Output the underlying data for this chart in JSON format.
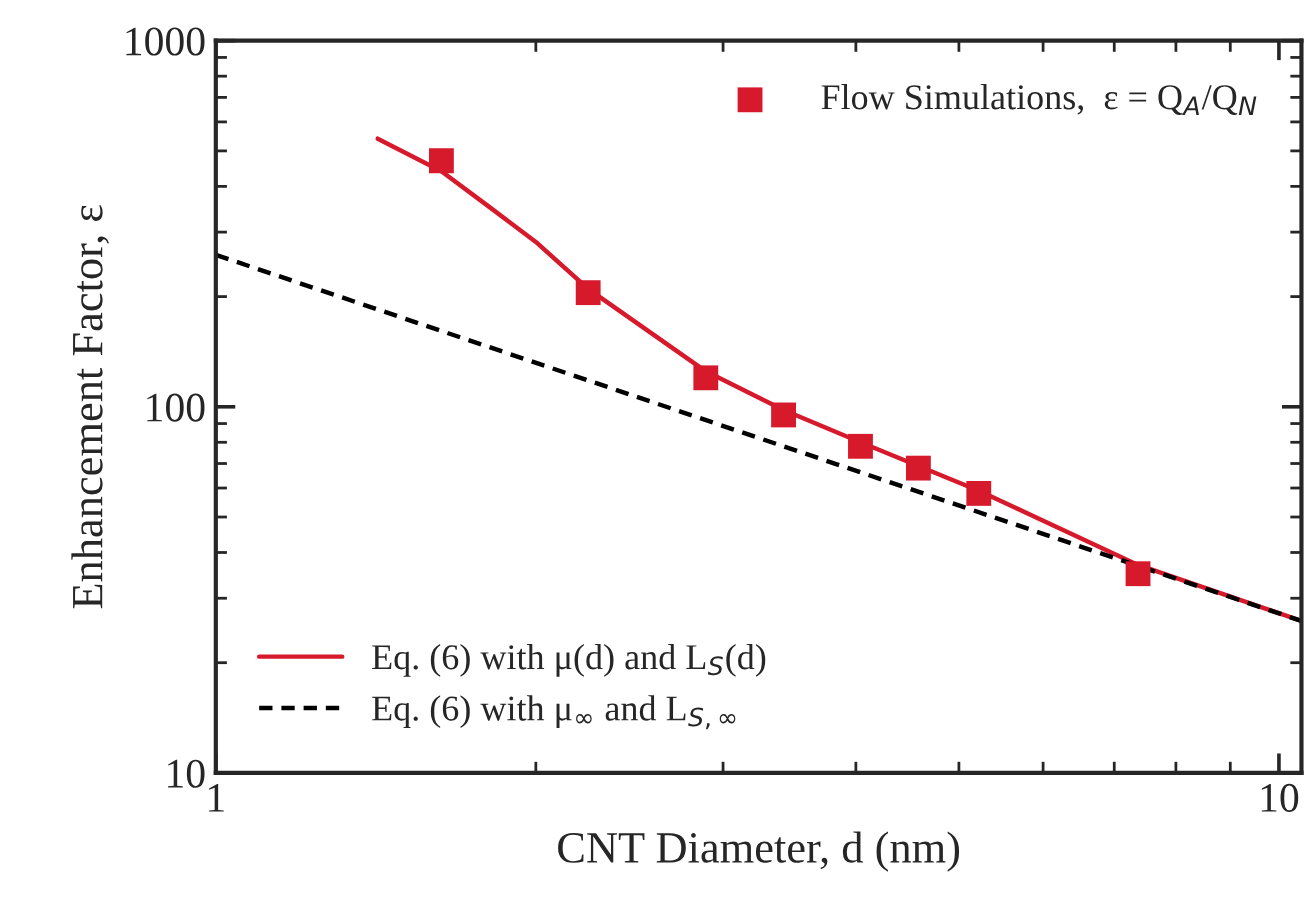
{
  "chart_data": {
    "type": "line",
    "xlabel": "CNT Diameter, d (nm)",
    "ylabel": "Enhancement Factor, ε",
    "log": "xy",
    "xlim": [
      1,
      10.5
    ],
    "xticks": [
      1,
      10
    ],
    "ylim": [
      10,
      1000
    ],
    "yticks": [
      10,
      100,
      1000
    ],
    "grid": false,
    "legend": "bottom left",
    "series": [
      {
        "name": "Flow Simulations,  ε = Q$_{A}$/Q$_{N}$",
        "type": "scatter",
        "marker": "square",
        "color": "#d7192c",
        "x": [
          1.63,
          2.24,
          2.89,
          3.42,
          4.04,
          4.58,
          5.22,
          7.37
        ],
        "values": [
          470,
          205,
          120,
          95,
          78,
          68,
          58,
          35
        ]
      },
      {
        "name": "Eq. (6) with μ(d) and L$_{S}$(d)",
        "line_style": "solid",
        "color": "#d7192c",
        "x": [
          1.42,
          1.63,
          1.8,
          2.0,
          2.24,
          2.89,
          3.42,
          4.04,
          5.22,
          7.37,
          10.5
        ],
        "values": [
          540,
          440,
          355,
          282,
          210,
          125,
          98,
          80,
          59,
          37,
          26
        ]
      },
      {
        "name": "Eq. (6) with μ$_{∞}$ and L$_{S,∞}$",
        "line_style": "dashed",
        "color": "#000000",
        "x": [
          1,
          10.5
        ],
        "values": [
          260,
          26
        ]
      }
    ]
  }
}
